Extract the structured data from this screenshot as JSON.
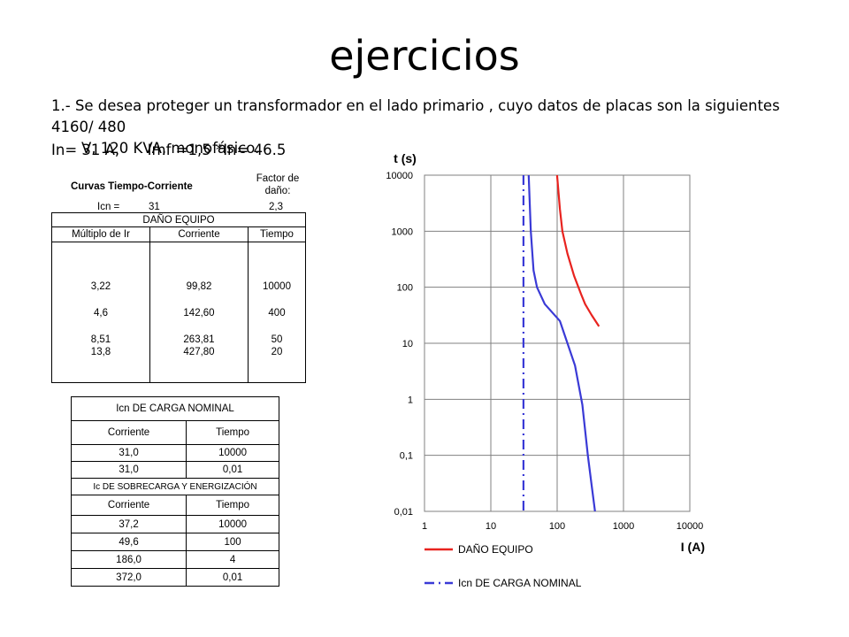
{
  "slide": {
    "title": "ejercicios",
    "paragraph_line1": "1.- Se desea proteger un transformador en el lado primario  , cuyo datos de placas son la siguientes 4160/ 480",
    "paragraph_line2": "V, 120 KVA, monofásico.",
    "line2": "In= 31 A,      Imf =1,5 *In= 46.5"
  },
  "table1": {
    "heading": "Curvas  Tiempo-Corriente",
    "factor_label": "Factor de daño:",
    "icn_label": "Icn =",
    "icn_value": "31",
    "factor_value": "2,3",
    "section_title": "DAÑO EQUIPO",
    "col1": "Múltiplo de Ir",
    "col2": "Corriente",
    "col3": "Tiempo",
    "rows": [
      [
        "3,22",
        "99,82",
        "10000"
      ],
      [
        "4,6",
        "142,60",
        "400"
      ],
      [
        "8,51",
        "263,81",
        "50"
      ],
      [
        "13,8",
        "427,80",
        "20"
      ]
    ]
  },
  "table2": {
    "title": "Icn DE CARGA NOMINAL",
    "col1": "Corriente",
    "col2": "Tiempo",
    "rows": [
      [
        "31,0",
        "10000"
      ],
      [
        "31,0",
        "0,01"
      ]
    ],
    "section2_title": "Ic DE SOBRECARGA Y ENERGIZACIÓN",
    "col1b": "Corriente",
    "col2b": "Tiempo",
    "rows2": [
      [
        "37,2",
        "10000"
      ],
      [
        "49,6",
        "100"
      ],
      [
        "186,0",
        "4"
      ],
      [
        "372,0",
        "0,01"
      ]
    ]
  },
  "chart_data": {
    "type": "line",
    "xlabel": "I (A)",
    "ylabel": "t (s)",
    "x_scale": "log",
    "y_scale": "log",
    "xlim": [
      1,
      10000
    ],
    "ylim": [
      0.01,
      10000
    ],
    "x_ticks": [
      "1",
      "10",
      "100",
      "1000",
      "10000"
    ],
    "y_ticks": [
      "10000",
      "1000",
      "100",
      "10",
      "1",
      "0,1",
      "0,01"
    ],
    "grid": true,
    "legend_position": "bottom",
    "series": [
      {
        "name": "DAÑO EQUIPO",
        "color": "#e8231f",
        "x": [
          99.82,
          110,
          120,
          142.6,
          180,
          230,
          263.81,
          330,
          427.8
        ],
        "y": [
          10000,
          2500,
          1000,
          400,
          160,
          75,
          50,
          32,
          20
        ]
      },
      {
        "name": "Icn DE CARGA NOMINAL",
        "color": "#3a3ad6",
        "dash": true,
        "x": [
          31,
          31
        ],
        "y": [
          10000,
          0.01
        ]
      },
      {
        "name": "",
        "color": "#3a3ad6",
        "x": [
          37.2,
          40,
          44,
          49.6,
          65,
          110,
          186,
          240,
          290,
          330,
          372
        ],
        "y": [
          10000,
          1000,
          200,
          100,
          50,
          25,
          4,
          0.8,
          0.1,
          0.03,
          0.01
        ]
      }
    ]
  }
}
